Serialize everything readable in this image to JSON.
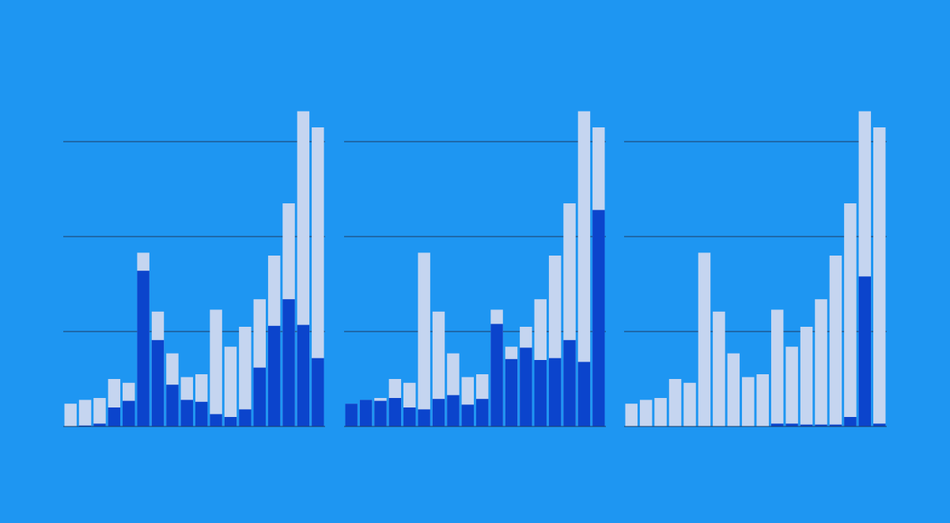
{
  "chart_data": [
    {
      "type": "bar",
      "bar_mode": "overlay",
      "grid": true,
      "categories": [
        null,
        null,
        null,
        null,
        null,
        null,
        null,
        null,
        null,
        null,
        null,
        null,
        null,
        null,
        null,
        null,
        null,
        null
      ],
      "ylim": [
        0,
        3.5
      ],
      "yticks": [
        0,
        1,
        2,
        3
      ],
      "series": [
        {
          "color": "#c5d5f0",
          "values": [
            0.24,
            0.28,
            0.3,
            0.5,
            0.46,
            1.83,
            1.21,
            0.77,
            0.52,
            0.55,
            1.23,
            0.84,
            1.05,
            1.34,
            1.8,
            2.35,
            3.32,
            3.15
          ]
        },
        {
          "color": "#0b44cc",
          "values": [
            0,
            0.01,
            0.03,
            0.2,
            0.27,
            1.64,
            0.91,
            0.44,
            0.28,
            0.26,
            0.13,
            0.1,
            0.18,
            0.62,
            1.06,
            1.34,
            1.07,
            0.72
          ]
        }
      ]
    },
    {
      "type": "bar",
      "bar_mode": "overlay",
      "grid": true,
      "categories": [
        null,
        null,
        null,
        null,
        null,
        null,
        null,
        null,
        null,
        null,
        null,
        null,
        null,
        null,
        null,
        null,
        null,
        null
      ],
      "ylim": [
        0,
        3.5
      ],
      "yticks": [
        0,
        1,
        2,
        3
      ],
      "series": [
        {
          "color": "#c5d5f0",
          "values": [
            0.24,
            0.28,
            0.3,
            0.5,
            0.46,
            1.83,
            1.21,
            0.77,
            0.52,
            0.55,
            1.23,
            0.84,
            1.05,
            1.34,
            1.8,
            2.35,
            3.32,
            3.15
          ]
        },
        {
          "color": "#0b44cc",
          "values": [
            0.24,
            0.28,
            0.27,
            0.3,
            0.2,
            0.18,
            0.29,
            0.33,
            0.23,
            0.29,
            1.08,
            0.71,
            0.83,
            0.7,
            0.72,
            0.91,
            0.68,
            2.28
          ]
        }
      ]
    },
    {
      "type": "bar",
      "bar_mode": "overlay",
      "grid": true,
      "categories": [
        null,
        null,
        null,
        null,
        null,
        null,
        null,
        null,
        null,
        null,
        null,
        null,
        null,
        null,
        null,
        null,
        null,
        null
      ],
      "ylim": [
        0,
        3.5
      ],
      "yticks": [
        0,
        1,
        2,
        3
      ],
      "series": [
        {
          "color": "#c5d5f0",
          "values": [
            0.24,
            0.28,
            0.3,
            0.5,
            0.46,
            1.83,
            1.21,
            0.77,
            0.52,
            0.55,
            1.23,
            0.84,
            1.05,
            1.34,
            1.8,
            2.35,
            3.32,
            3.15
          ]
        },
        {
          "color": "#0b44cc",
          "values": [
            0,
            0,
            0,
            0,
            0,
            0,
            0,
            0,
            0,
            0,
            0.03,
            0.03,
            0.02,
            0.02,
            0.02,
            0.1,
            1.58,
            0.03
          ]
        }
      ]
    }
  ]
}
